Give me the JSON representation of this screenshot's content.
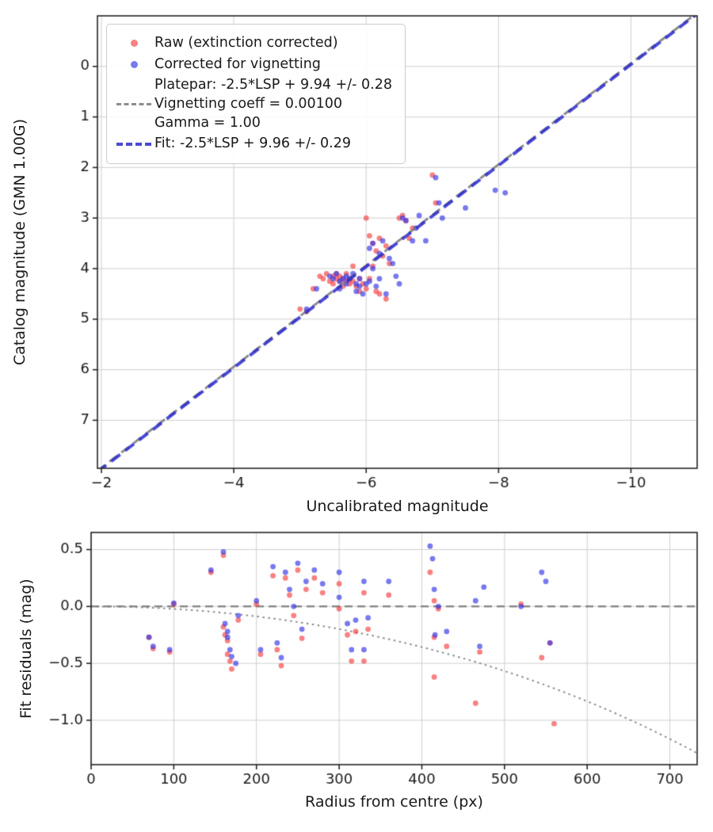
{
  "figure": {
    "background": "#ffffff",
    "grid_color": "#d0d0d0",
    "spine_color": "#262626",
    "text_color": "#1a1a1a"
  },
  "colors": {
    "raw_points": "rgba(244,62,62,0.65)",
    "corrected_points": "rgba(58,58,230,0.68)",
    "platepar_line": "rgba(127,127,127,0.9)",
    "fit_line": "rgba(43,43,204,0.85)"
  },
  "legend": {
    "items": [
      {
        "marker": "dot",
        "label": "Raw (extinction corrected)"
      },
      {
        "marker": "dot",
        "label": "Corrected for vignetting"
      },
      {
        "marker": "dashed-line",
        "lines": [
          "Platepar: -2.5*LSP + 9.94 +/- 0.28",
          "Vignetting coeff = 0.00100",
          "Gamma = 1.00"
        ]
      },
      {
        "marker": "dashed-line",
        "label": "Fit: -2.5*LSP + 9.96 +/- 0.29"
      }
    ]
  },
  "chart_data": [
    {
      "id": "top",
      "type": "scatter",
      "title": "",
      "xlabel": "Uncalibrated magnitude",
      "ylabel": "Catalog magnitude (GMN 1.00G)",
      "xlim": [
        -1.94,
        -11.0
      ],
      "ylim": [
        -1.0,
        7.95
      ],
      "x_ticks": {
        "values": [
          -2,
          -4,
          -6,
          -8,
          -10
        ],
        "labels": [
          "−2",
          "−4",
          "−6",
          "−8",
          "−10"
        ]
      },
      "y_ticks": {
        "values": [
          0,
          1,
          2,
          3,
          4,
          5,
          6,
          7
        ],
        "labels": [
          "0",
          "1",
          "2",
          "3",
          "4",
          "5",
          "6",
          "7"
        ]
      },
      "grid": true,
      "legend_position": "upper left",
      "lines_on_top": true,
      "lines": [
        {
          "name": "platepar",
          "kind": "linear",
          "slope": 1,
          "intercept": 9.94,
          "colorKey": "platepar_line",
          "width": 3,
          "dash": [
            12,
            7
          ]
        },
        {
          "name": "fit",
          "kind": "linear",
          "slope": 1,
          "intercept": 9.96,
          "colorKey": "fit_line",
          "width": 4,
          "dash": [
            14,
            8
          ]
        }
      ],
      "series": [
        {
          "name": "Raw (extinction corrected)",
          "colorKey": "raw_points",
          "marker_radius": 3.4,
          "points": [
            [
              -5.0,
              4.8
            ],
            [
              -5.1,
              4.85
            ],
            [
              -5.2,
              4.4
            ],
            [
              -5.3,
              4.15
            ],
            [
              -5.35,
              4.2
            ],
            [
              -5.4,
              4.1
            ],
            [
              -5.45,
              4.25
            ],
            [
              -5.5,
              4.15
            ],
            [
              -5.5,
              4.3
            ],
            [
              -5.55,
              4.2
            ],
            [
              -5.55,
              4.1
            ],
            [
              -5.6,
              4.25
            ],
            [
              -5.6,
              4.15
            ],
            [
              -5.65,
              4.2
            ],
            [
              -5.65,
              4.35
            ],
            [
              -5.7,
              4.25
            ],
            [
              -5.7,
              4.1
            ],
            [
              -5.75,
              4.3
            ],
            [
              -5.75,
              4.2
            ],
            [
              -5.8,
              3.95
            ],
            [
              -5.8,
              4.25
            ],
            [
              -5.85,
              4.35
            ],
            [
              -5.9,
              4.45
            ],
            [
              -5.9,
              4.2
            ],
            [
              -5.95,
              4.3
            ],
            [
              -6.0,
              3.0
            ],
            [
              -6.0,
              4.4
            ],
            [
              -6.05,
              3.35
            ],
            [
              -6.05,
              4.2
            ],
            [
              -6.1,
              3.5
            ],
            [
              -6.1,
              3.95
            ],
            [
              -6.15,
              4.45
            ],
            [
              -6.15,
              3.65
            ],
            [
              -6.2,
              3.4
            ],
            [
              -6.2,
              4.5
            ],
            [
              -6.25,
              3.75
            ],
            [
              -6.3,
              3.55
            ],
            [
              -6.3,
              4.6
            ],
            [
              -6.35,
              3.9
            ],
            [
              -6.5,
              3.0
            ],
            [
              -6.55,
              2.95
            ],
            [
              -6.6,
              3.05
            ],
            [
              -6.65,
              3.4
            ],
            [
              -6.7,
              3.2
            ],
            [
              -7.0,
              2.15
            ],
            [
              -7.05,
              2.7
            ]
          ]
        },
        {
          "name": "Corrected for vignetting",
          "colorKey": "corrected_points",
          "marker_radius": 3.4,
          "points": [
            [
              -5.1,
              4.8
            ],
            [
              -5.25,
              4.4
            ],
            [
              -5.45,
              4.15
            ],
            [
              -5.5,
              4.2
            ],
            [
              -5.55,
              4.1
            ],
            [
              -5.6,
              4.25
            ],
            [
              -5.6,
              4.4
            ],
            [
              -5.65,
              4.2
            ],
            [
              -5.7,
              4.3
            ],
            [
              -5.7,
              4.15
            ],
            [
              -5.75,
              4.2
            ],
            [
              -5.8,
              4.1
            ],
            [
              -5.85,
              4.3
            ],
            [
              -5.85,
              4.45
            ],
            [
              -5.9,
              4.35
            ],
            [
              -5.9,
              4.2
            ],
            [
              -5.95,
              4.5
            ],
            [
              -6.0,
              4.3
            ],
            [
              -6.05,
              4.25
            ],
            [
              -6.05,
              3.6
            ],
            [
              -6.1,
              3.5
            ],
            [
              -6.1,
              4.0
            ],
            [
              -6.15,
              4.35
            ],
            [
              -6.2,
              3.7
            ],
            [
              -6.2,
              4.2
            ],
            [
              -6.25,
              3.45
            ],
            [
              -6.3,
              4.5
            ],
            [
              -6.35,
              3.8
            ],
            [
              -6.4,
              3.9
            ],
            [
              -6.45,
              4.15
            ],
            [
              -6.5,
              4.3
            ],
            [
              -6.55,
              3.0
            ],
            [
              -6.6,
              3.05
            ],
            [
              -6.7,
              3.45
            ],
            [
              -6.75,
              3.2
            ],
            [
              -6.8,
              2.95
            ],
            [
              -6.9,
              3.45
            ],
            [
              -7.05,
              2.2
            ],
            [
              -7.1,
              2.7
            ],
            [
              -7.15,
              3.0
            ],
            [
              -7.5,
              2.8
            ],
            [
              -7.95,
              2.45
            ],
            [
              -8.1,
              2.5
            ]
          ]
        }
      ]
    },
    {
      "id": "bottom",
      "type": "scatter",
      "title": "",
      "xlabel": "Radius from centre (px)",
      "ylabel": "Fit residuals (mag)",
      "xlim": [
        0,
        733
      ],
      "ylim": [
        0.65,
        -1.39
      ],
      "x_ticks": {
        "values": [
          0,
          100,
          200,
          300,
          400,
          500,
          600,
          700
        ],
        "labels": [
          "0",
          "100",
          "200",
          "300",
          "400",
          "500",
          "600",
          "700"
        ]
      },
      "y_ticks": {
        "values": [
          0.5,
          0.0,
          -0.5,
          -1.0
        ],
        "labels": [
          "0.5",
          "0.0",
          "−0.5",
          "−1.0"
        ]
      },
      "grid": true,
      "lines_on_top": false,
      "lines": [
        {
          "name": "zero-residual",
          "kind": "hline",
          "y": 0,
          "colorKey": "platepar_line",
          "width": 2.5,
          "dash": [
            10,
            6
          ]
        },
        {
          "name": "vignetting-model",
          "kind": "vignetting",
          "coeff": 0.001,
          "colorKey": "platepar_line",
          "width": 2,
          "dash": [
            2.5,
            4.5
          ]
        }
      ],
      "series": [
        {
          "name": "Raw residuals",
          "colorKey": "raw_points",
          "marker_radius": 3.4,
          "points": [
            [
              70,
              -0.27
            ],
            [
              75,
              -0.37
            ],
            [
              95,
              -0.4
            ],
            [
              100,
              0.02
            ],
            [
              145,
              0.3
            ],
            [
              160,
              0.45
            ],
            [
              160,
              -0.18
            ],
            [
              162,
              -0.25
            ],
            [
              165,
              -0.3
            ],
            [
              165,
              -0.42
            ],
            [
              168,
              -0.48
            ],
            [
              170,
              -0.55
            ],
            [
              178,
              -0.12
            ],
            [
              200,
              0.02
            ],
            [
              205,
              -0.42
            ],
            [
              220,
              0.27
            ],
            [
              225,
              -0.38
            ],
            [
              230,
              -0.52
            ],
            [
              235,
              0.25
            ],
            [
              240,
              0.1
            ],
            [
              245,
              -0.08
            ],
            [
              250,
              0.32
            ],
            [
              255,
              -0.28
            ],
            [
              260,
              0.15
            ],
            [
              270,
              0.25
            ],
            [
              280,
              0.12
            ],
            [
              300,
              0.2
            ],
            [
              300,
              -0.02
            ],
            [
              310,
              -0.25
            ],
            [
              315,
              -0.48
            ],
            [
              320,
              -0.22
            ],
            [
              330,
              0.12
            ],
            [
              330,
              -0.48
            ],
            [
              335,
              -0.2
            ],
            [
              360,
              0.1
            ],
            [
              410,
              0.3
            ],
            [
              415,
              0.05
            ],
            [
              415,
              -0.27
            ],
            [
              415,
              -0.62
            ],
            [
              420,
              -0.02
            ],
            [
              430,
              -0.35
            ],
            [
              465,
              -0.85
            ],
            [
              470,
              -0.4
            ],
            [
              520,
              0.02
            ],
            [
              545,
              -0.45
            ],
            [
              555,
              -0.32
            ],
            [
              560,
              -1.03
            ]
          ]
        },
        {
          "name": "Corrected residuals",
          "colorKey": "corrected_points",
          "marker_radius": 3.4,
          "points": [
            [
              70,
              -0.27
            ],
            [
              75,
              -0.35
            ],
            [
              95,
              -0.38
            ],
            [
              100,
              0.03
            ],
            [
              145,
              0.32
            ],
            [
              160,
              0.48
            ],
            [
              162,
              -0.15
            ],
            [
              165,
              -0.22
            ],
            [
              165,
              -0.27
            ],
            [
              168,
              -0.38
            ],
            [
              170,
              -0.44
            ],
            [
              175,
              -0.5
            ],
            [
              178,
              -0.08
            ],
            [
              200,
              0.05
            ],
            [
              205,
              -0.38
            ],
            [
              220,
              0.35
            ],
            [
              225,
              -0.32
            ],
            [
              230,
              -0.45
            ],
            [
              235,
              0.3
            ],
            [
              240,
              0.15
            ],
            [
              245,
              0.0
            ],
            [
              250,
              0.38
            ],
            [
              255,
              -0.2
            ],
            [
              260,
              0.22
            ],
            [
              270,
              0.32
            ],
            [
              280,
              0.2
            ],
            [
              300,
              0.3
            ],
            [
              300,
              0.08
            ],
            [
              310,
              -0.15
            ],
            [
              315,
              -0.38
            ],
            [
              320,
              -0.12
            ],
            [
              330,
              0.22
            ],
            [
              330,
              -0.38
            ],
            [
              335,
              -0.1
            ],
            [
              360,
              0.22
            ],
            [
              410,
              0.53
            ],
            [
              413,
              0.42
            ],
            [
              415,
              0.15
            ],
            [
              416,
              -0.25
            ],
            [
              420,
              0.0
            ],
            [
              430,
              -0.22
            ],
            [
              465,
              0.05
            ],
            [
              470,
              -0.35
            ],
            [
              475,
              0.17
            ],
            [
              520,
              0.0
            ],
            [
              545,
              0.3
            ],
            [
              550,
              0.22
            ],
            [
              555,
              -0.32
            ]
          ]
        }
      ]
    }
  ]
}
